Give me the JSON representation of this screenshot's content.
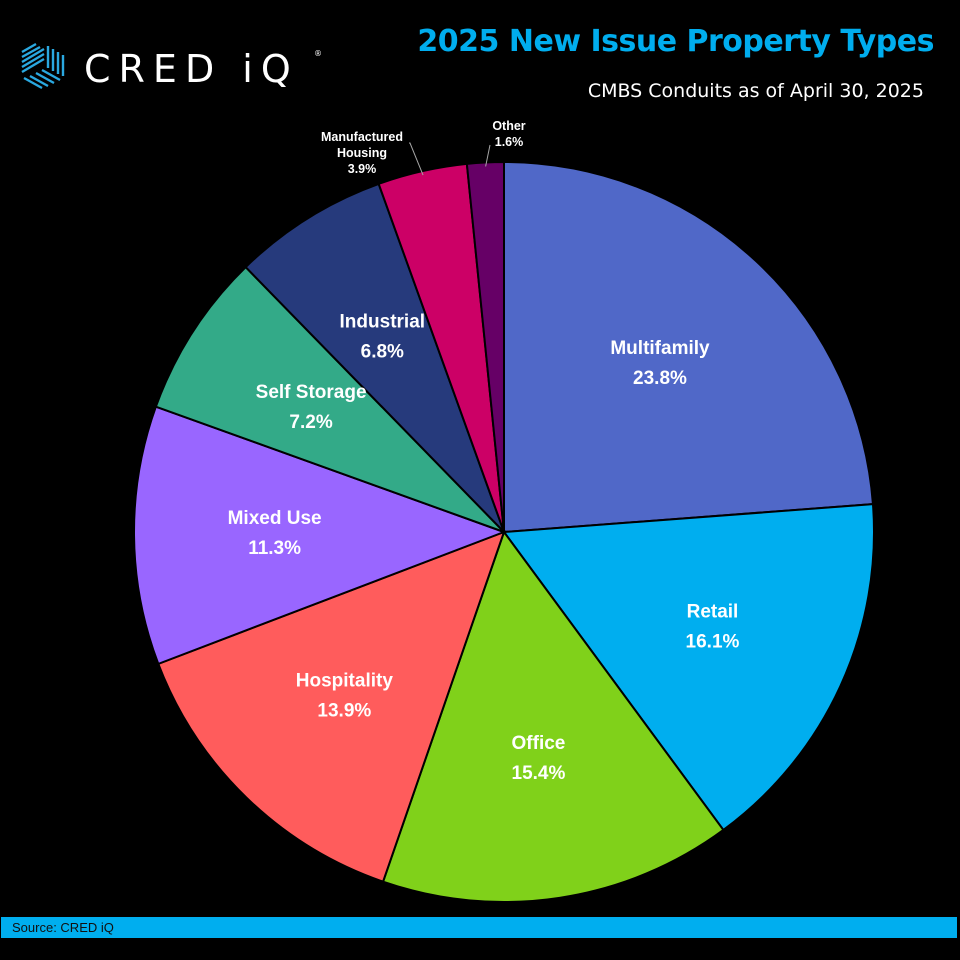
{
  "brand": {
    "logo_text": "CRED iQ",
    "accent_color": "#00adee"
  },
  "header": {
    "title": "2025 New Issue Property Types",
    "subtitle": "CMBS Conduits as of April 30, 2025"
  },
  "footer": {
    "source": "Source: CRED iQ"
  },
  "chart_data": {
    "type": "pie",
    "title": "2025 New Issue Property Types",
    "subtitle": "CMBS Conduits as of April 30, 2025",
    "start": "12 o'clock, clockwise",
    "unit": "%",
    "slices": [
      {
        "label": "Multifamily",
        "value": 23.8,
        "display": "23.8%",
        "color": "#5068c8"
      },
      {
        "label": "Retail",
        "value": 16.1,
        "display": "16.1%",
        "color": "#00aeef"
      },
      {
        "label": "Office",
        "value": 15.4,
        "display": "15.4%",
        "color": "#80d11a"
      },
      {
        "label": "Hospitality",
        "value": 13.9,
        "display": "13.9%",
        "color": "#ff5c5c"
      },
      {
        "label": "Mixed Use",
        "value": 11.3,
        "display": "11.3%",
        "color": "#9966ff"
      },
      {
        "label": "Self Storage",
        "value": 7.2,
        "display": "7.2%",
        "color": "#33aa88"
      },
      {
        "label": "Industrial",
        "value": 6.8,
        "display": "6.8%",
        "color": "#263a7c"
      },
      {
        "label": "Manufactured Housing",
        "value": 3.9,
        "display": "3.9%",
        "color": "#cc0066",
        "label_lines": [
          "Manufactured",
          "Housing"
        ]
      },
      {
        "label": "Other",
        "value": 1.6,
        "display": "1.6%",
        "color": "#660066"
      }
    ]
  }
}
